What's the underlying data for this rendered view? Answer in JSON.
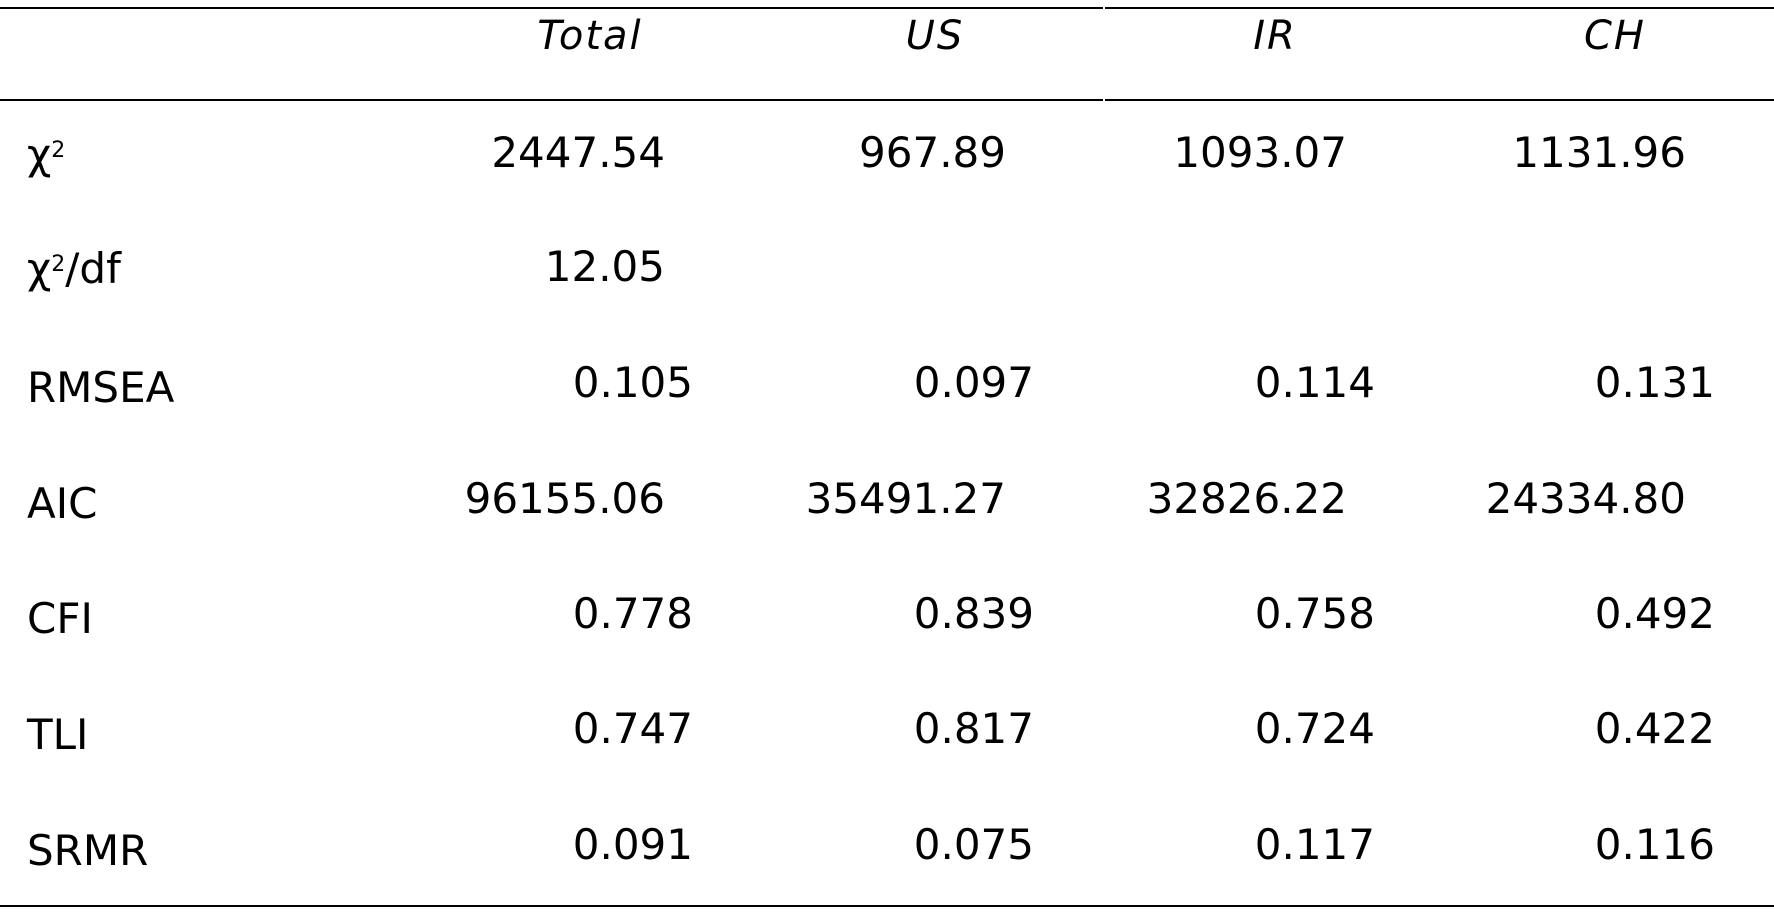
{
  "table": {
    "columns": [
      "Total",
      "US",
      "IR",
      "CH"
    ],
    "rows": [
      {
        "label_base": "χ",
        "label_sup": "2",
        "label_tail": "",
        "values": [
          "2447.54",
          "967.89",
          "1093.07",
          "1131.96"
        ]
      },
      {
        "label_base": "χ",
        "label_sup": "2",
        "label_tail": "/df",
        "values": [
          "12.05",
          "",
          "",
          ""
        ]
      },
      {
        "label_base": "RMSEA",
        "label_sup": "",
        "label_tail": "",
        "values": [
          "0.105",
          "0.097",
          "0.114",
          "0.131"
        ]
      },
      {
        "label_base": "AIC",
        "label_sup": "",
        "label_tail": "",
        "values": [
          "96155.06",
          "35491.27",
          "32826.22",
          "24334.80"
        ]
      },
      {
        "label_base": "CFI",
        "label_sup": "",
        "label_tail": "",
        "values": [
          "0.778",
          "0.839",
          "0.758",
          "0.492"
        ]
      },
      {
        "label_base": "TLI",
        "label_sup": "",
        "label_tail": "",
        "values": [
          "0.747",
          "0.817",
          "0.724",
          "0.422"
        ]
      },
      {
        "label_base": "SRMR",
        "label_sup": "",
        "label_tail": "",
        "values": [
          "0.091",
          "0.075",
          "0.117",
          "0.116"
        ]
      }
    ]
  }
}
